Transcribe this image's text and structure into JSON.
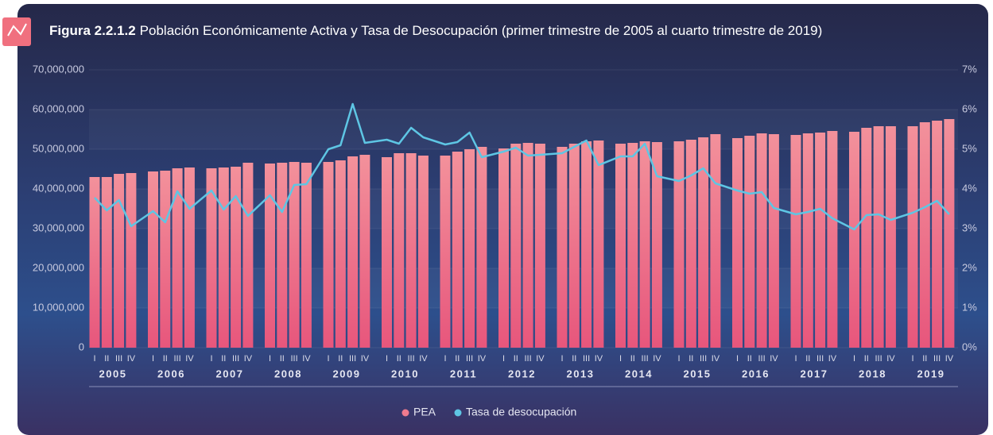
{
  "chart_data": {
    "type": "bar",
    "figure_label": "Figura 2.2.1.2",
    "title": "Población Económicamente Activa y Tasa de Desocupación (primer trimestre de 2005 al cuarto trimestre de 2019)",
    "categories": [
      "I",
      "II",
      "III",
      "IV",
      "I",
      "II",
      "III",
      "IV",
      "I",
      "II",
      "III",
      "IV",
      "I",
      "II",
      "III",
      "IV",
      "I",
      "II",
      "III",
      "IV",
      "I",
      "II",
      "III",
      "IV",
      "I",
      "II",
      "III",
      "IV",
      "I",
      "II",
      "III",
      "IV",
      "I",
      "II",
      "III",
      "IV",
      "I",
      "II",
      "III",
      "IV",
      "I",
      "II",
      "III",
      "IV",
      "I",
      "II",
      "III",
      "IV",
      "I",
      "II",
      "III",
      "IV",
      "I",
      "II",
      "III",
      "IV",
      "I",
      "II",
      "III",
      "IV"
    ],
    "years": [
      "2005",
      "2006",
      "2007",
      "2008",
      "2009",
      "2010",
      "2011",
      "2012",
      "2013",
      "2014",
      "2015",
      "2016",
      "2017",
      "2018",
      "2019"
    ],
    "series": [
      {
        "name": "PEA",
        "type": "bar",
        "color": "#ef7b8e",
        "values": [
          43000000,
          43000000,
          43800000,
          44000000,
          44400000,
          44600000,
          45200000,
          45400000,
          45200000,
          45400000,
          45600000,
          46600000,
          46400000,
          46600000,
          46800000,
          46600000,
          46800000,
          47200000,
          48200000,
          48600000,
          48000000,
          49000000,
          49000000,
          48400000,
          48400000,
          49400000,
          50000000,
          50600000,
          50200000,
          51400000,
          51600000,
          51400000,
          50600000,
          51400000,
          52000000,
          52200000,
          51400000,
          51600000,
          52000000,
          51800000,
          52000000,
          52400000,
          53000000,
          53800000,
          52800000,
          53400000,
          54000000,
          53800000,
          53600000,
          54000000,
          54200000,
          54600000,
          54400000,
          55400000,
          55800000,
          55800000,
          55800000,
          56800000,
          57200000,
          57600000
        ]
      },
      {
        "name": "Tasa de desocupación",
        "type": "line",
        "axis": "y2",
        "color": "#5ec6e4",
        "values": [
          3.78,
          3.46,
          3.72,
          3.06,
          3.44,
          3.16,
          3.94,
          3.5,
          3.96,
          3.48,
          3.82,
          3.32,
          3.84,
          3.42,
          4.1,
          4.12,
          5.0,
          5.1,
          6.14,
          5.16,
          5.24,
          5.14,
          5.54,
          5.3,
          5.12,
          5.18,
          5.42,
          4.8,
          4.94,
          5.04,
          4.84,
          4.86,
          4.9,
          5.06,
          5.22,
          4.6,
          4.82,
          4.82,
          5.14,
          4.32,
          4.2,
          4.34,
          4.52,
          4.14,
          3.96,
          3.88,
          3.92,
          3.52,
          3.36,
          3.42,
          3.5,
          3.26,
          2.98,
          3.34,
          3.36,
          3.22,
          3.4,
          3.54,
          3.7,
          3.36
        ]
      }
    ],
    "ylim": [
      0,
      70000000
    ],
    "yticks": [
      0,
      {
        "value": 10000000,
        "label": "10,000,000"
      },
      {
        "value": 20000000,
        "label": "20,000,000"
      },
      {
        "value": 30000000,
        "label": "30,000,000"
      },
      {
        "value": 40000000,
        "label": "40,000,000"
      },
      {
        "value": 50000000,
        "label": "50,000,000"
      },
      {
        "value": 60000000,
        "label": "60,000,000"
      },
      {
        "value": 70000000,
        "label": "70,000,000"
      }
    ],
    "y2lim": [
      0,
      7
    ],
    "y2ticks": [
      {
        "value": 0,
        "label": "0%"
      },
      {
        "value": 1,
        "label": "1%"
      },
      {
        "value": 2,
        "label": "2%"
      },
      {
        "value": 3,
        "label": "3%"
      },
      {
        "value": 4,
        "label": "4%"
      },
      {
        "value": 5,
        "label": "5%"
      },
      {
        "value": 6,
        "label": "6%"
      },
      {
        "value": 7,
        "label": "7%"
      }
    ],
    "grid": true,
    "legend": "bottom"
  }
}
